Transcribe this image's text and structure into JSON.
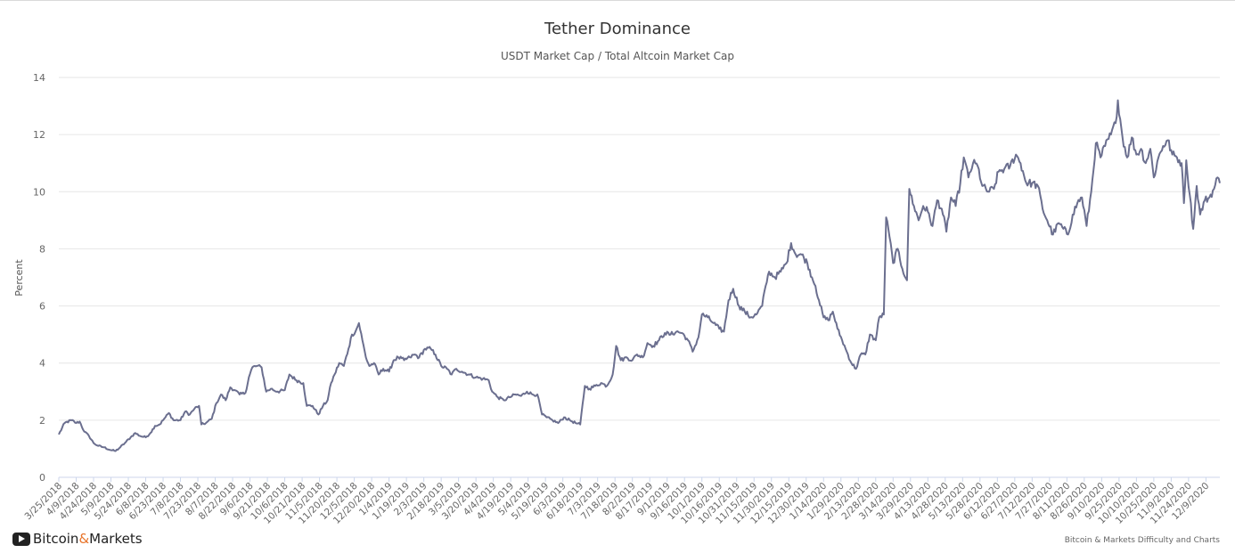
{
  "chart_data": {
    "type": "line",
    "title": "Tether Dominance",
    "subtitle": "USDT Market Cap / Total Altcoin Market Cap",
    "ylabel": "Percent",
    "ylim": [
      0,
      14
    ],
    "yticks": [
      0,
      2,
      4,
      6,
      8,
      10,
      12,
      14
    ],
    "grid": true,
    "line_color": "#6b6f8f",
    "x_start": "2018-03-25",
    "x_end": "2020-12-21",
    "xtick_labels": [
      "3/25/2018",
      "4/9/2018",
      "4/24/2018",
      "5/9/2018",
      "5/24/2018",
      "6/8/2018",
      "6/23/2018",
      "7/8/2018",
      "7/23/2018",
      "8/7/2018",
      "8/22/2018",
      "9/6/2018",
      "9/21/2018",
      "10/6/2018",
      "10/21/2018",
      "11/5/2018",
      "11/20/2018",
      "12/5/2018",
      "12/20/2018",
      "1/4/2019",
      "1/19/2019",
      "2/3/2019",
      "2/18/2019",
      "3/5/2019",
      "3/20/2019",
      "4/4/2019",
      "4/19/2019",
      "5/4/2019",
      "5/19/2019",
      "6/3/2019",
      "6/18/2019",
      "7/3/2019",
      "7/18/2019",
      "8/2/2019",
      "8/17/2019",
      "9/1/2019",
      "9/16/2019",
      "10/1/2019",
      "10/16/2019",
      "10/31/2019",
      "11/15/2019",
      "11/30/2019",
      "12/15/2019",
      "12/30/2019",
      "1/14/2020",
      "1/29/2020",
      "2/13/2020",
      "2/28/2020",
      "3/14/2020",
      "3/29/2020",
      "4/13/2020",
      "4/28/2020",
      "5/13/2020",
      "5/28/2020",
      "6/12/2020",
      "6/27/2020",
      "7/12/2020",
      "7/27/2020",
      "8/11/2020",
      "8/26/2020",
      "9/10/2020",
      "9/25/2020",
      "10/10/2020",
      "10/25/2020",
      "11/9/2020",
      "11/24/2020",
      "12/9/2020"
    ],
    "series": [
      {
        "points": [
          [
            "2018-03-25",
            1.5
          ],
          [
            "2018-03-30",
            1.9
          ],
          [
            "2018-04-05",
            2.0
          ],
          [
            "2018-04-09",
            1.9
          ],
          [
            "2018-04-12",
            1.95
          ],
          [
            "2018-04-16",
            1.6
          ],
          [
            "2018-04-20",
            1.45
          ],
          [
            "2018-04-24",
            1.2
          ],
          [
            "2018-04-28",
            1.1
          ],
          [
            "2018-05-03",
            1.05
          ],
          [
            "2018-05-09",
            0.95
          ],
          [
            "2018-05-13",
            0.92
          ],
          [
            "2018-05-17",
            1.05
          ],
          [
            "2018-05-21",
            1.2
          ],
          [
            "2018-05-26",
            1.4
          ],
          [
            "2018-05-30",
            1.55
          ],
          [
            "2018-06-03",
            1.45
          ],
          [
            "2018-06-08",
            1.4
          ],
          [
            "2018-06-12",
            1.55
          ],
          [
            "2018-06-16",
            1.8
          ],
          [
            "2018-06-20",
            1.85
          ],
          [
            "2018-06-25",
            2.1
          ],
          [
            "2018-06-28",
            2.25
          ],
          [
            "2018-07-02",
            2.0
          ],
          [
            "2018-07-08",
            2.0
          ],
          [
            "2018-07-12",
            2.3
          ],
          [
            "2018-07-16",
            2.2
          ],
          [
            "2018-07-20",
            2.4
          ],
          [
            "2018-07-24",
            2.5
          ],
          [
            "2018-07-26",
            1.85
          ],
          [
            "2018-07-30",
            1.9
          ],
          [
            "2018-08-04",
            2.05
          ],
          [
            "2018-08-08",
            2.6
          ],
          [
            "2018-08-12",
            2.9
          ],
          [
            "2018-08-16",
            2.7
          ],
          [
            "2018-08-20",
            3.15
          ],
          [
            "2018-08-24",
            3.05
          ],
          [
            "2018-08-28",
            2.9
          ],
          [
            "2018-09-02",
            2.95
          ],
          [
            "2018-09-05",
            3.5
          ],
          [
            "2018-09-08",
            3.85
          ],
          [
            "2018-09-12",
            3.9
          ],
          [
            "2018-09-16",
            3.85
          ],
          [
            "2018-09-20",
            3.0
          ],
          [
            "2018-09-24",
            3.1
          ],
          [
            "2018-09-30",
            3.0
          ],
          [
            "2018-10-06",
            3.05
          ],
          [
            "2018-10-10",
            3.6
          ],
          [
            "2018-10-16",
            3.4
          ],
          [
            "2018-10-22",
            3.3
          ],
          [
            "2018-10-25",
            2.5
          ],
          [
            "2018-10-30",
            2.5
          ],
          [
            "2018-11-04",
            2.2
          ],
          [
            "2018-11-08",
            2.5
          ],
          [
            "2018-11-12",
            2.7
          ],
          [
            "2018-11-15",
            3.3
          ],
          [
            "2018-11-18",
            3.6
          ],
          [
            "2018-11-22",
            4.0
          ],
          [
            "2018-11-26",
            3.9
          ],
          [
            "2018-11-30",
            4.5
          ],
          [
            "2018-12-03",
            5.0
          ],
          [
            "2018-12-06",
            5.1
          ],
          [
            "2018-12-09",
            5.4
          ],
          [
            "2018-12-12",
            4.8
          ],
          [
            "2018-12-15",
            4.2
          ],
          [
            "2018-12-18",
            3.9
          ],
          [
            "2018-12-22",
            4.0
          ],
          [
            "2018-12-26",
            3.6
          ],
          [
            "2018-12-30",
            3.8
          ],
          [
            "2019-01-04",
            3.7
          ],
          [
            "2019-01-08",
            4.1
          ],
          [
            "2019-01-12",
            4.2
          ],
          [
            "2019-01-17",
            4.1
          ],
          [
            "2019-01-22",
            4.2
          ],
          [
            "2019-01-26",
            4.3
          ],
          [
            "2019-01-30",
            4.2
          ],
          [
            "2019-02-04",
            4.5
          ],
          [
            "2019-02-09",
            4.5
          ],
          [
            "2019-02-13",
            4.3
          ],
          [
            "2019-02-18",
            3.9
          ],
          [
            "2019-02-23",
            3.8
          ],
          [
            "2019-02-27",
            3.6
          ],
          [
            "2019-03-03",
            3.8
          ],
          [
            "2019-03-08",
            3.7
          ],
          [
            "2019-03-14",
            3.6
          ],
          [
            "2019-03-20",
            3.5
          ],
          [
            "2019-03-26",
            3.45
          ],
          [
            "2019-03-31",
            3.4
          ],
          [
            "2019-04-03",
            3.0
          ],
          [
            "2019-04-08",
            2.8
          ],
          [
            "2019-04-13",
            2.7
          ],
          [
            "2019-04-18",
            2.8
          ],
          [
            "2019-04-23",
            2.9
          ],
          [
            "2019-04-28",
            2.85
          ],
          [
            "2019-05-03",
            3.0
          ],
          [
            "2019-05-08",
            2.9
          ],
          [
            "2019-05-12",
            2.9
          ],
          [
            "2019-05-16",
            2.2
          ],
          [
            "2019-05-20",
            2.1
          ],
          [
            "2019-05-25",
            2.0
          ],
          [
            "2019-05-30",
            1.9
          ],
          [
            "2019-06-04",
            2.1
          ],
          [
            "2019-06-09",
            2.0
          ],
          [
            "2019-06-14",
            1.9
          ],
          [
            "2019-06-18",
            1.85
          ],
          [
            "2019-06-22",
            3.2
          ],
          [
            "2019-06-26",
            3.1
          ],
          [
            "2019-07-01",
            3.2
          ],
          [
            "2019-07-06",
            3.3
          ],
          [
            "2019-07-11",
            3.2
          ],
          [
            "2019-07-16",
            3.6
          ],
          [
            "2019-07-19",
            4.6
          ],
          [
            "2019-07-23",
            4.1
          ],
          [
            "2019-07-28",
            4.2
          ],
          [
            "2019-08-02",
            4.1
          ],
          [
            "2019-08-06",
            4.3
          ],
          [
            "2019-08-11",
            4.2
          ],
          [
            "2019-08-15",
            4.7
          ],
          [
            "2019-08-20",
            4.6
          ],
          [
            "2019-08-25",
            4.8
          ],
          [
            "2019-08-30",
            5.05
          ],
          [
            "2019-09-04",
            5.0
          ],
          [
            "2019-09-09",
            5.1
          ],
          [
            "2019-09-14",
            5.05
          ],
          [
            "2019-09-19",
            4.8
          ],
          [
            "2019-09-23",
            4.4
          ],
          [
            "2019-09-28",
            4.9
          ],
          [
            "2019-10-01",
            5.7
          ],
          [
            "2019-10-06",
            5.6
          ],
          [
            "2019-10-11",
            5.4
          ],
          [
            "2019-10-16",
            5.2
          ],
          [
            "2019-10-20",
            5.1
          ],
          [
            "2019-10-24",
            6.2
          ],
          [
            "2019-10-28",
            6.6
          ],
          [
            "2019-11-02",
            6.0
          ],
          [
            "2019-11-07",
            5.8
          ],
          [
            "2019-11-12",
            5.6
          ],
          [
            "2019-11-17",
            5.7
          ],
          [
            "2019-11-22",
            6.0
          ],
          [
            "2019-11-25",
            6.7
          ],
          [
            "2019-11-28",
            7.2
          ],
          [
            "2019-12-03",
            7.0
          ],
          [
            "2019-12-08",
            7.2
          ],
          [
            "2019-12-13",
            7.5
          ],
          [
            "2019-12-17",
            8.2
          ],
          [
            "2019-12-21",
            7.8
          ],
          [
            "2019-12-26",
            7.8
          ],
          [
            "2019-12-31",
            7.5
          ],
          [
            "2020-01-04",
            7.0
          ],
          [
            "2020-01-07",
            6.7
          ],
          [
            "2020-01-10",
            6.2
          ],
          [
            "2020-01-14",
            5.6
          ],
          [
            "2020-01-18",
            5.5
          ],
          [
            "2020-01-22",
            5.8
          ],
          [
            "2020-01-26",
            5.2
          ],
          [
            "2020-01-30",
            4.8
          ],
          [
            "2020-02-03",
            4.4
          ],
          [
            "2020-02-07",
            4.0
          ],
          [
            "2020-02-11",
            3.8
          ],
          [
            "2020-02-15",
            4.3
          ],
          [
            "2020-02-19",
            4.3
          ],
          [
            "2020-02-23",
            5.0
          ],
          [
            "2020-02-28",
            4.8
          ],
          [
            "2020-03-02",
            5.6
          ],
          [
            "2020-03-06",
            5.7
          ],
          [
            "2020-03-08",
            9.1
          ],
          [
            "2020-03-11",
            8.4
          ],
          [
            "2020-03-14",
            7.5
          ],
          [
            "2020-03-18",
            8.0
          ],
          [
            "2020-03-22",
            7.3
          ],
          [
            "2020-03-26",
            6.9
          ],
          [
            "2020-03-28",
            10.1
          ],
          [
            "2020-04-01",
            9.5
          ],
          [
            "2020-04-05",
            9.0
          ],
          [
            "2020-04-09",
            9.5
          ],
          [
            "2020-04-13",
            9.3
          ],
          [
            "2020-04-17",
            8.8
          ],
          [
            "2020-04-21",
            9.7
          ],
          [
            "2020-04-25",
            9.4
          ],
          [
            "2020-04-29",
            8.6
          ],
          [
            "2020-05-03",
            9.8
          ],
          [
            "2020-05-07",
            9.5
          ],
          [
            "2020-05-11",
            10.3
          ],
          [
            "2020-05-14",
            11.2
          ],
          [
            "2020-05-18",
            10.5
          ],
          [
            "2020-05-22",
            11.0
          ],
          [
            "2020-05-26",
            10.9
          ],
          [
            "2020-05-30",
            10.2
          ],
          [
            "2020-06-04",
            10.0
          ],
          [
            "2020-06-09",
            10.1
          ],
          [
            "2020-06-13",
            10.7
          ],
          [
            "2020-06-18",
            10.8
          ],
          [
            "2020-06-23",
            10.9
          ],
          [
            "2020-06-28",
            11.3
          ],
          [
            "2020-07-02",
            11.0
          ],
          [
            "2020-07-07",
            10.3
          ],
          [
            "2020-07-12",
            10.3
          ],
          [
            "2020-07-17",
            10.2
          ],
          [
            "2020-07-21",
            9.4
          ],
          [
            "2020-07-25",
            9.0
          ],
          [
            "2020-07-30",
            8.5
          ],
          [
            "2020-08-04",
            8.9
          ],
          [
            "2020-08-08",
            8.7
          ],
          [
            "2020-08-12",
            8.5
          ],
          [
            "2020-08-16",
            9.2
          ],
          [
            "2020-08-20",
            9.6
          ],
          [
            "2020-08-24",
            9.8
          ],
          [
            "2020-08-28",
            8.8
          ],
          [
            "2020-09-01",
            10.0
          ],
          [
            "2020-09-05",
            11.7
          ],
          [
            "2020-09-09",
            11.2
          ],
          [
            "2020-09-13",
            11.6
          ],
          [
            "2020-09-18",
            12.0
          ],
          [
            "2020-09-22",
            12.4
          ],
          [
            "2020-09-24",
            13.2
          ],
          [
            "2020-09-28",
            11.9
          ],
          [
            "2020-10-02",
            11.2
          ],
          [
            "2020-10-06",
            11.9
          ],
          [
            "2020-10-10",
            11.3
          ],
          [
            "2020-10-14",
            11.5
          ],
          [
            "2020-10-18",
            11.0
          ],
          [
            "2020-10-22",
            11.5
          ],
          [
            "2020-10-25",
            10.5
          ],
          [
            "2020-10-29",
            11.2
          ],
          [
            "2020-11-02",
            11.6
          ],
          [
            "2020-11-06",
            11.8
          ],
          [
            "2020-11-10",
            11.3
          ],
          [
            "2020-11-14",
            11.2
          ],
          [
            "2020-11-18",
            11.0
          ],
          [
            "2020-11-20",
            9.6
          ],
          [
            "2020-11-22",
            11.1
          ],
          [
            "2020-11-25",
            9.9
          ],
          [
            "2020-11-28",
            8.7
          ],
          [
            "2020-12-01",
            10.2
          ],
          [
            "2020-12-04",
            9.2
          ],
          [
            "2020-12-08",
            9.7
          ],
          [
            "2020-12-12",
            9.8
          ],
          [
            "2020-12-16",
            10.1
          ],
          [
            "2020-12-19",
            10.5
          ],
          [
            "2020-12-21",
            10.3
          ]
        ]
      }
    ]
  },
  "branding": {
    "logo_text_a": "Bitcoin",
    "logo_amp": "&",
    "logo_text_b": "Markets",
    "credits": "Bitcoin & Markets Difficulty and Charts",
    "accent_color": "#e8742a"
  }
}
